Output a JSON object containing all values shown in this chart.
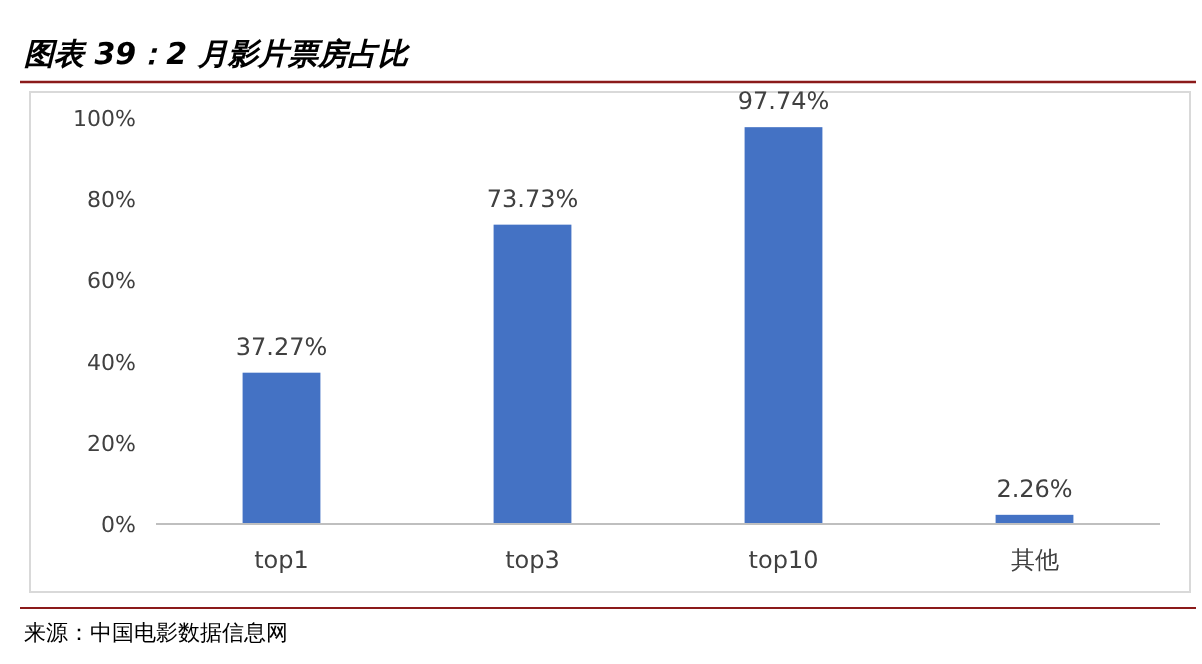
{
  "chart_data": {
    "type": "bar",
    "title": "图表 39：2 月影片票房占比",
    "categories": [
      "top1",
      "top3",
      "top10",
      "其他"
    ],
    "values": [
      37.27,
      73.73,
      97.74,
      2.26
    ],
    "value_labels": [
      "37.27%",
      "73.73%",
      "97.74%",
      "2.26%"
    ],
    "color": "#4472c4",
    "ylim": [
      0,
      100
    ],
    "yticks": [
      {
        "value": 0,
        "label": "0%"
      },
      {
        "value": 20,
        "label": "20%"
      },
      {
        "value": 40,
        "label": "40%"
      },
      {
        "value": 60,
        "label": "60%"
      },
      {
        "value": 80,
        "label": "80%"
      },
      {
        "value": 100,
        "label": "100%"
      }
    ],
    "grid": false,
    "annotations": [
      "来源：中国电影数据信息网"
    ]
  }
}
